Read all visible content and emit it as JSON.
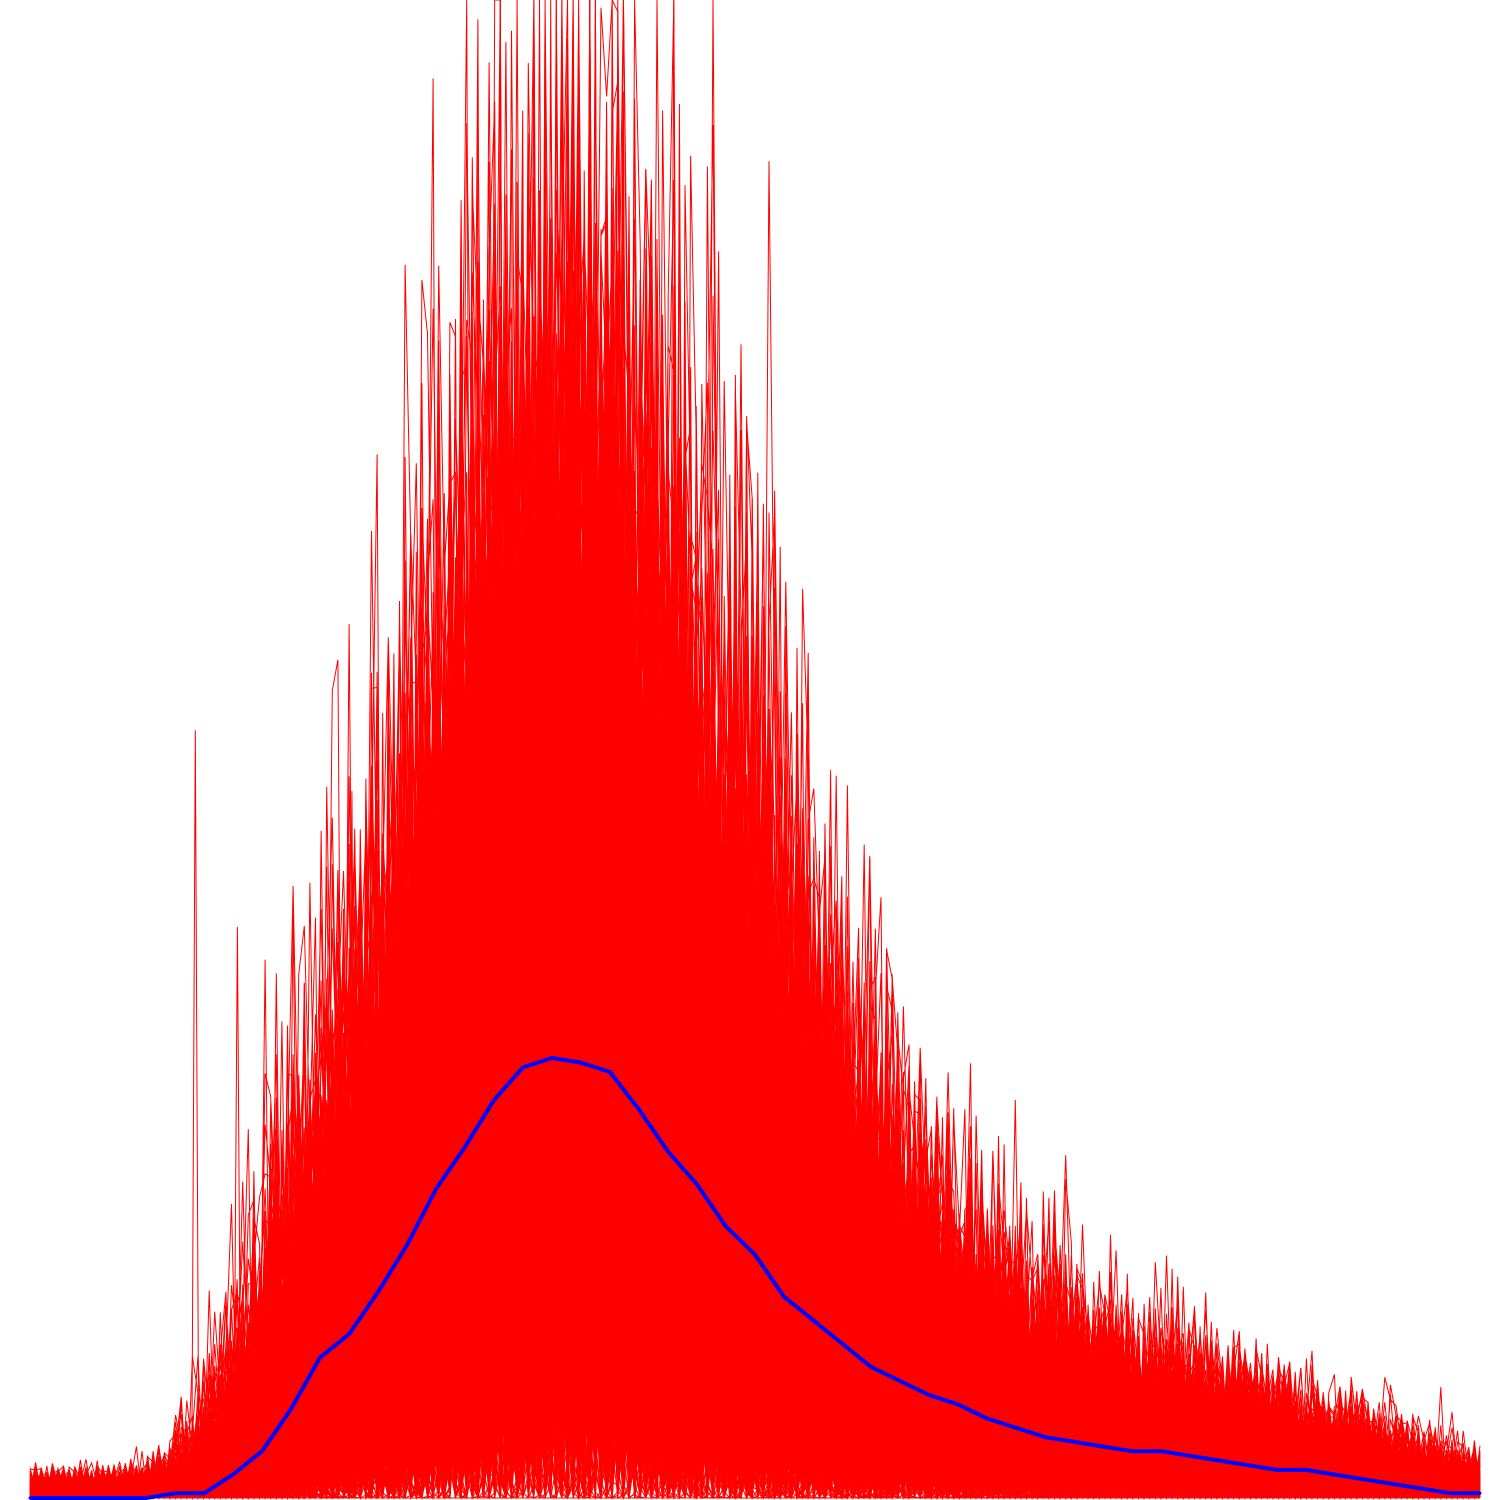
{
  "chart_data": {
    "type": "line",
    "title": "",
    "xlabel": "",
    "ylabel": "",
    "x_range": [
      0,
      100
    ],
    "ylim": [
      0,
      32
    ],
    "grid": false,
    "legend": "none",
    "colors": {
      "runs": "#ff0000",
      "mean": "#0000ff",
      "background": "#ffffff"
    },
    "series": [
      {
        "role": "mean",
        "color": "#0000ff",
        "x": [
          0,
          2,
          4,
          6,
          8,
          10,
          12,
          14,
          16,
          18,
          20,
          22,
          24,
          26,
          28,
          30,
          32,
          34,
          36,
          38,
          40,
          42,
          44,
          46,
          48,
          50,
          52,
          54,
          56,
          58,
          60,
          62,
          64,
          66,
          68,
          70,
          72,
          74,
          76,
          78,
          80,
          82,
          84,
          86,
          88,
          90,
          92,
          94,
          96,
          98,
          100
        ],
        "values": [
          0.0,
          0.0,
          0.0,
          0.0,
          0.0,
          0.1,
          0.1,
          0.5,
          1.0,
          1.9,
          3.0,
          3.5,
          4.4,
          5.4,
          6.6,
          7.5,
          8.5,
          9.2,
          9.4,
          9.3,
          9.1,
          8.3,
          7.4,
          6.7,
          5.8,
          5.2,
          4.3,
          3.8,
          3.3,
          2.8,
          2.5,
          2.2,
          2.0,
          1.7,
          1.5,
          1.3,
          1.2,
          1.1,
          1.0,
          1.0,
          0.9,
          0.8,
          0.7,
          0.6,
          0.6,
          0.5,
          0.4,
          0.3,
          0.2,
          0.1,
          0.1
        ]
      }
    ],
    "runs": {
      "color": "#ff0000",
      "count": 400,
      "points_per_run": 260,
      "mean_series": "mean",
      "notable_spikes": [
        {
          "x": 11.4,
          "value": 16.4
        },
        {
          "x": 24.7,
          "value": 15.7
        },
        {
          "x": 22.2,
          "value": 15.1
        },
        {
          "x": 37.8,
          "value": 11.8
        },
        {
          "x": 14.3,
          "value": 12.2
        },
        {
          "x": 43.1,
          "value": 9.2
        }
      ]
    }
  }
}
